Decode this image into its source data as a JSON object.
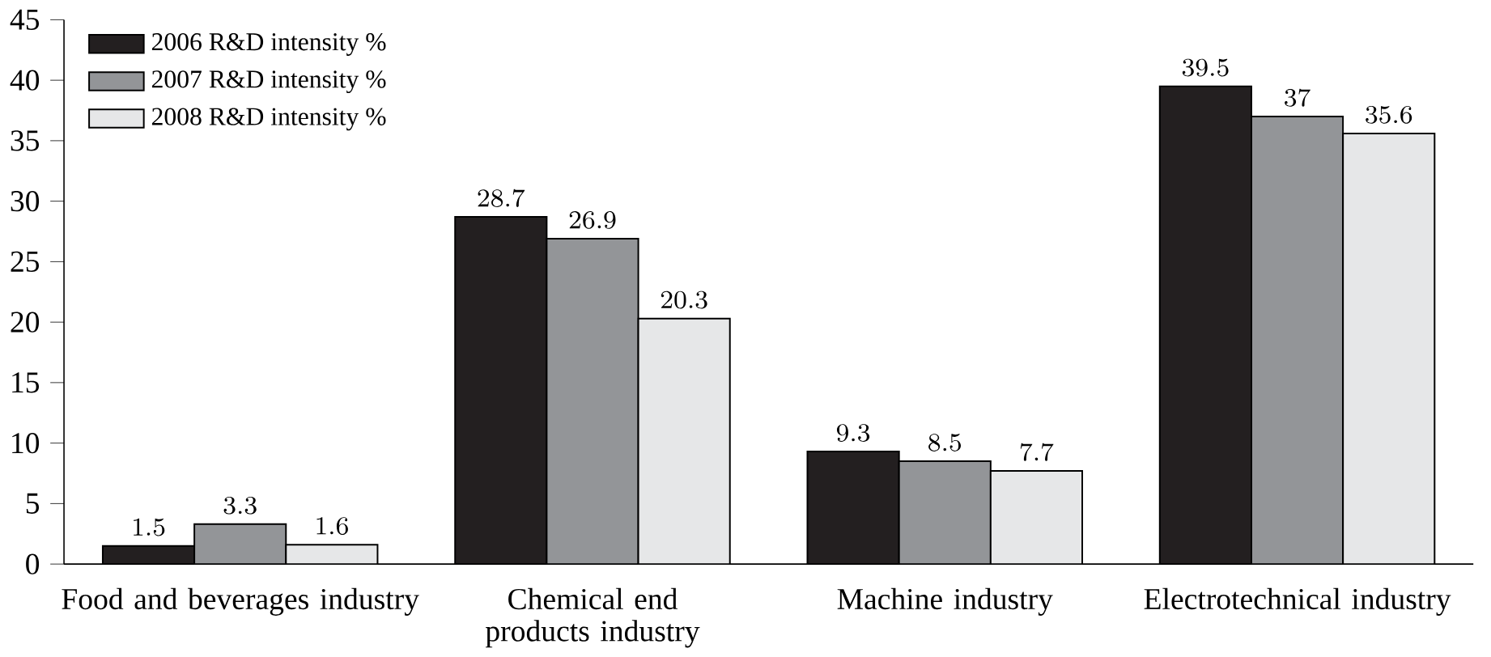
{
  "chart_data": {
    "type": "bar",
    "categories": [
      "Food and beverages industry",
      "Chemical end products industry",
      "Machine industry",
      "Electrotechnical industry"
    ],
    "series": [
      {
        "name": "2006 R&D intensity %",
        "color": "#231f20",
        "values": [
          1.5,
          28.7,
          9.3,
          39.5
        ]
      },
      {
        "name": "2007 R&D intensity %",
        "color": "#939598",
        "values": [
          3.3,
          26.9,
          8.5,
          37
        ]
      },
      {
        "name": "2008 R&D intensity %",
        "color": "#e6e7e8",
        "values": [
          1.6,
          20.3,
          7.7,
          35.6
        ]
      }
    ],
    "ylim": [
      0,
      45
    ],
    "yticks": [
      0,
      5,
      10,
      15,
      20,
      25,
      30,
      35,
      40,
      45
    ],
    "data_labels": true,
    "legend": "top left",
    "grid": false
  }
}
